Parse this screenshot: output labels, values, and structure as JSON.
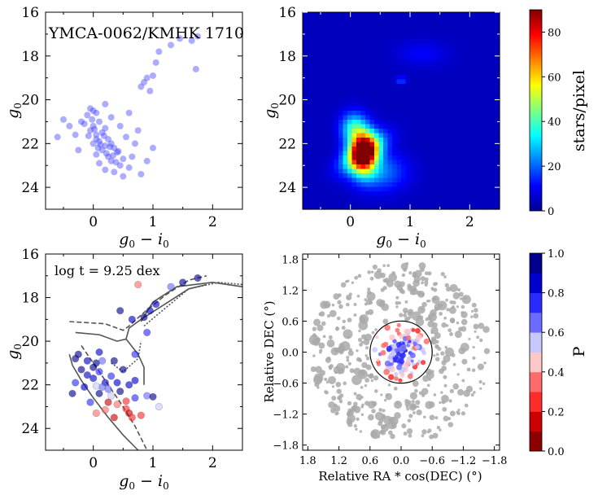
{
  "panels": {
    "cmd_observed": {
      "title": "YMCA-0062/KMHK 1710",
      "xlabel_main": "g",
      "xlabel_sub1": "0",
      "xlabel_mid": " − i",
      "xlabel_sub2": "0",
      "ylabel_main": "g",
      "ylabel_sub": "0",
      "xticks": [
        "0",
        "1",
        "2"
      ],
      "yticks": [
        "16",
        "18",
        "20",
        "22",
        "24"
      ]
    },
    "density": {
      "xticks": [
        "0",
        "1",
        "2"
      ],
      "yticks": [
        "16",
        "18",
        "20",
        "22",
        "24"
      ],
      "colorbar_label": "stars/pixel",
      "colorbar_ticks": [
        "0",
        "20",
        "40",
        "60",
        "80"
      ]
    },
    "cmd_isochrone": {
      "annotation": "log t = 9.25 dex",
      "xticks": [
        "0",
        "1",
        "2"
      ],
      "yticks": [
        "16",
        "18",
        "20",
        "22",
        "24"
      ]
    },
    "spatial": {
      "xlabel": "Relative RA * cos(DEC) (°)",
      "ylabel": "Relative DEC (°)",
      "xticks": [
        "1.8",
        "1.2",
        "0.6",
        "0.0",
        "−0.6",
        "−1.2",
        "−1.8"
      ],
      "yticks": [
        "1.8",
        "1.2",
        "0.6",
        "0.0",
        "−0.6",
        "−1.2",
        "−1.8"
      ],
      "colorbar_label": "P",
      "colorbar_ticks": [
        "0.0",
        "0.2",
        "0.4",
        "0.6",
        "0.8",
        "1.0"
      ]
    }
  },
  "colors": {
    "observed_points": "#3b3bff",
    "member_high": "#00008b",
    "member_mid": "#3b3bff",
    "member_low": "#ffc8c8",
    "nonmember_field": "#a9a9a9",
    "isochrone": "#555555",
    "circle": "#000000"
  },
  "chart_data": [
    {
      "type": "scatter",
      "title": "YMCA-0062/KMHK 1710",
      "xlabel": "g0 − i0",
      "ylabel": "g0",
      "xlim": [
        -0.8,
        2.5
      ],
      "ylim": [
        25,
        16
      ],
      "y_inverted": true,
      "points": [
        [
          -0.05,
          20.4
        ],
        [
          0.0,
          20.5
        ],
        [
          -0.1,
          20.7
        ],
        [
          0.05,
          20.6
        ],
        [
          -0.02,
          20.9
        ],
        [
          0.1,
          21.0
        ],
        [
          -0.15,
          21.1
        ],
        [
          0.0,
          21.2
        ],
        [
          0.2,
          21.3
        ],
        [
          -0.05,
          21.4
        ],
        [
          0.15,
          21.5
        ],
        [
          0.05,
          21.6
        ],
        [
          -0.2,
          21.0
        ],
        [
          0.25,
          21.8
        ],
        [
          0.1,
          21.9
        ],
        [
          0.3,
          22.0
        ],
        [
          0.0,
          22.0
        ],
        [
          0.2,
          22.1
        ],
        [
          0.35,
          22.2
        ],
        [
          0.15,
          22.3
        ],
        [
          0.4,
          22.4
        ],
        [
          0.05,
          22.5
        ],
        [
          0.25,
          22.6
        ],
        [
          0.5,
          22.7
        ],
        [
          0.3,
          22.8
        ],
        [
          0.1,
          22.9
        ],
        [
          0.45,
          23.0
        ],
        [
          0.6,
          23.1
        ],
        [
          0.2,
          23.2
        ],
        [
          0.35,
          23.3
        ],
        [
          0.7,
          22.0
        ],
        [
          0.55,
          21.7
        ],
        [
          0.65,
          22.6
        ],
        [
          0.8,
          23.4
        ],
        [
          0.5,
          23.5
        ],
        [
          0.9,
          22.8
        ],
        [
          1.0,
          22.2
        ],
        [
          0.75,
          21.4
        ],
        [
          -0.3,
          21.6
        ],
        [
          -0.25,
          22.3
        ],
        [
          -0.4,
          21.2
        ],
        [
          -0.5,
          20.9
        ],
        [
          -0.6,
          21.7
        ],
        [
          0.45,
          21.2
        ],
        [
          0.3,
          20.8
        ],
        [
          0.2,
          20.2
        ],
        [
          0.6,
          20.6
        ],
        [
          0.85,
          19.2
        ],
        [
          0.9,
          19.0
        ],
        [
          1.0,
          18.9
        ],
        [
          1.05,
          18.3
        ],
        [
          1.1,
          17.8
        ],
        [
          1.3,
          17.5
        ],
        [
          1.45,
          17.2
        ],
        [
          1.65,
          17.3
        ],
        [
          1.75,
          17.1
        ],
        [
          1.72,
          18.6
        ],
        [
          0.95,
          19.6
        ],
        [
          0.8,
          19.4
        ],
        [
          0.05,
          21.8
        ],
        [
          0.12,
          22.05
        ],
        [
          0.22,
          22.45
        ],
        [
          0.28,
          22.15
        ],
        [
          0.33,
          22.55
        ],
        [
          0.08,
          22.2
        ],
        [
          0.18,
          21.65
        ],
        [
          0.02,
          21.35
        ],
        [
          -0.08,
          21.65
        ],
        [
          0.38,
          22.85
        ],
        [
          0.42,
          22.35
        ]
      ]
    },
    {
      "type": "heatmap",
      "xlabel": "g0 − i0",
      "ylabel": "g0",
      "xlim": [
        -0.8,
        2.5
      ],
      "ylim": [
        25,
        16
      ],
      "colorbar_label": "stars/pixel",
      "zlim": [
        0,
        90
      ],
      "components": [
        {
          "x": 0.22,
          "y": 22.4,
          "peak": 88,
          "sx": 0.15,
          "sy": 0.65
        },
        {
          "x": 0.05,
          "y": 21.3,
          "peak": 30,
          "sx": 0.15,
          "sy": 0.5
        },
        {
          "x": 0.5,
          "y": 23.3,
          "peak": 18,
          "sx": 0.3,
          "sy": 0.6
        },
        {
          "x": 0.85,
          "y": 19.1,
          "peak": 14,
          "sx": 0.06,
          "sy": 0.12
        },
        {
          "x": 1.2,
          "y": 17.9,
          "peak": 6,
          "sx": 0.3,
          "sy": 0.4
        }
      ]
    },
    {
      "type": "scatter",
      "annotation": "log t = 9.25 dex",
      "xlabel": "g0 − i0",
      "ylabel": "g0",
      "xlim": [
        -0.8,
        2.5
      ],
      "ylim": [
        25,
        16
      ],
      "y_inverted": true,
      "points_xyp": [
        [
          -0.25,
          20.6,
          0.9
        ],
        [
          -0.1,
          20.9,
          0.8
        ],
        [
          0.05,
          21.0,
          0.95
        ],
        [
          -0.2,
          21.3,
          0.9
        ],
        [
          0.1,
          21.4,
          0.7
        ],
        [
          0.0,
          21.7,
          0.85
        ],
        [
          0.2,
          21.9,
          0.8
        ],
        [
          -0.3,
          21.9,
          0.75
        ],
        [
          -0.35,
          22.4,
          0.9
        ],
        [
          0.15,
          22.1,
          0.6
        ],
        [
          0.3,
          22.5,
          0.5
        ],
        [
          0.4,
          22.9,
          0.3
        ],
        [
          0.55,
          23.1,
          0.2
        ],
        [
          0.6,
          23.3,
          0.15
        ],
        [
          0.35,
          23.5,
          0.1
        ],
        [
          0.7,
          22.6,
          0.75
        ],
        [
          0.45,
          22.3,
          0.9
        ],
        [
          0.8,
          23.4,
          0.2
        ],
        [
          0.9,
          22.5,
          0.6
        ],
        [
          1.1,
          23.0,
          0.5
        ],
        [
          0.7,
          21.8,
          0.85
        ],
        [
          0.5,
          21.3,
          0.9
        ],
        [
          0.85,
          18.9,
          0.9
        ],
        [
          0.95,
          18.6,
          0.8
        ],
        [
          1.05,
          18.3,
          0.85
        ],
        [
          1.3,
          17.5,
          0.6
        ],
        [
          1.5,
          17.3,
          0.9
        ],
        [
          1.75,
          17.1,
          0.95
        ],
        [
          0.75,
          17.4,
          0.35
        ],
        [
          0.65,
          19.0,
          0.85
        ],
        [
          0.45,
          18.6,
          0.9
        ],
        [
          0.9,
          19.6,
          0.7
        ],
        [
          0.0,
          21.2,
          0.95
        ],
        [
          0.1,
          20.5,
          0.8
        ],
        [
          -0.05,
          22.8,
          0.7
        ],
        [
          0.25,
          22.8,
          0.15
        ],
        [
          0.6,
          22.0,
          0.8
        ],
        [
          -0.15,
          22.1,
          0.85
        ],
        [
          0.1,
          22.4,
          0.9
        ],
        [
          0.3,
          21.6,
          0.75
        ],
        [
          0.55,
          22.75,
          0.2
        ],
        [
          0.2,
          23.15,
          0.3
        ],
        [
          1.0,
          22.55,
          0.9
        ],
        [
          -0.3,
          20.8,
          0.9
        ],
        [
          0.15,
          20.9,
          0.6
        ],
        [
          0.05,
          23.3,
          0.35
        ],
        [
          0.65,
          23.5,
          0.25
        ],
        [
          0.4,
          21.9,
          0.8
        ],
        [
          0.25,
          22.2,
          0.65
        ],
        [
          -0.1,
          21.55,
          0.8
        ],
        [
          0.05,
          22.05,
          0.55
        ],
        [
          0.35,
          20.9,
          0.9
        ],
        [
          0.7,
          20.6,
          0.75
        ]
      ],
      "isochrone_style": "gray, solid / dashed / dotted"
    },
    {
      "type": "scatter",
      "xlabel": "Relative RA * cos(DEC) (°)",
      "ylabel": "Relative DEC (°)",
      "xlim": [
        1.9,
        -1.9
      ],
      "ylim": [
        -1.9,
        1.9
      ],
      "colorbar_label": "P",
      "zlim": [
        0,
        1
      ],
      "cluster_radius": 0.6
    }
  ]
}
